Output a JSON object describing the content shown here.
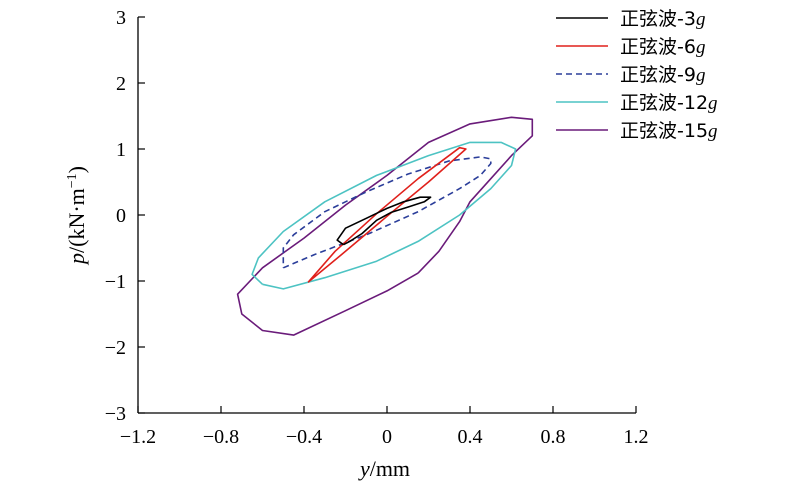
{
  "chart_data": {
    "type": "line",
    "x_axis": {
      "variable": "y",
      "unit": "/mm",
      "lim": [
        -1.2,
        1.2
      ],
      "ticks": [
        -1.2,
        -0.8,
        -0.4,
        0,
        0.4,
        0.8,
        1.2
      ],
      "tick_labels": [
        "−1.2",
        "−0.8",
        "−0.4",
        "0",
        "0.4",
        "0.8",
        "1.2"
      ]
    },
    "y_axis": {
      "variable": "p",
      "unit_prefix": "/(kN·m",
      "unit_exp": "−1",
      "unit_suffix": ")",
      "lim": [
        -3,
        3
      ],
      "ticks": [
        -3,
        -2,
        -1,
        0,
        1,
        2,
        3
      ],
      "tick_labels": [
        "−3",
        "−2",
        "−1",
        "0",
        "1",
        "2",
        "3"
      ]
    },
    "grid": false,
    "legend_position": "top-right",
    "series": [
      {
        "name_prefix": "正弦波-3",
        "name_suffix": "g",
        "color": "#000000",
        "dash": "",
        "points": [
          [
            -0.21,
            -0.45
          ],
          [
            -0.24,
            -0.38
          ],
          [
            -0.2,
            -0.2
          ],
          [
            -0.1,
            -0.05
          ],
          [
            0,
            0.1
          ],
          [
            0.08,
            0.2
          ],
          [
            0.16,
            0.27
          ],
          [
            0.21,
            0.27
          ],
          [
            0.18,
            0.2
          ],
          [
            0.1,
            0.12
          ],
          [
            0.02,
            0.04
          ],
          [
            -0.05,
            -0.08
          ],
          [
            -0.12,
            -0.28
          ],
          [
            -0.18,
            -0.4
          ],
          [
            -0.21,
            -0.45
          ]
        ]
      },
      {
        "name_prefix": "正弦波-6",
        "name_suffix": "g",
        "color": "#e0201b",
        "dash": "",
        "points": [
          [
            -0.38,
            -1.02
          ],
          [
            -0.2,
            -0.55
          ],
          [
            0,
            -0.02
          ],
          [
            0.2,
            0.5
          ],
          [
            0.38,
            1.0
          ],
          [
            0.35,
            1.02
          ],
          [
            0.15,
            0.55
          ],
          [
            -0.05,
            0.02
          ],
          [
            -0.25,
            -0.55
          ],
          [
            -0.38,
            -1.02
          ]
        ]
      },
      {
        "name_prefix": "正弦波-9",
        "name_suffix": "g",
        "color": "#2b3e9a",
        "dash": "6,4",
        "points": [
          [
            -0.5,
            -0.8
          ],
          [
            -0.35,
            -0.6
          ],
          [
            -0.1,
            -0.3
          ],
          [
            0.15,
            0.05
          ],
          [
            0.35,
            0.4
          ],
          [
            0.45,
            0.6
          ],
          [
            0.5,
            0.78
          ],
          [
            0.5,
            0.85
          ],
          [
            0.45,
            0.88
          ],
          [
            0.3,
            0.82
          ],
          [
            0.1,
            0.62
          ],
          [
            -0.1,
            0.35
          ],
          [
            -0.3,
            0.05
          ],
          [
            -0.45,
            -0.3
          ],
          [
            -0.5,
            -0.5
          ],
          [
            -0.5,
            -0.7
          ],
          [
            -0.5,
            -0.8
          ]
        ]
      },
      {
        "name_prefix": "正弦波-12",
        "name_suffix": "g",
        "color": "#4dc3c3",
        "dash": "",
        "points": [
          [
            -0.6,
            -1.05
          ],
          [
            -0.5,
            -1.12
          ],
          [
            -0.3,
            -0.95
          ],
          [
            -0.05,
            -0.7
          ],
          [
            0.15,
            -0.4
          ],
          [
            0.35,
            0.0
          ],
          [
            0.5,
            0.4
          ],
          [
            0.6,
            0.75
          ],
          [
            0.62,
            1.0
          ],
          [
            0.55,
            1.1
          ],
          [
            0.4,
            1.1
          ],
          [
            0.2,
            0.9
          ],
          [
            -0.05,
            0.6
          ],
          [
            -0.3,
            0.2
          ],
          [
            -0.5,
            -0.25
          ],
          [
            -0.62,
            -0.65
          ],
          [
            -0.65,
            -0.9
          ],
          [
            -0.6,
            -1.05
          ]
        ]
      },
      {
        "name_prefix": "正弦波-15",
        "name_suffix": "g",
        "color": "#6a1b7a",
        "dash": "",
        "points": [
          [
            0.15,
            -0.88
          ],
          [
            0.0,
            -1.15
          ],
          [
            -0.2,
            -1.45
          ],
          [
            -0.45,
            -1.82
          ],
          [
            -0.6,
            -1.75
          ],
          [
            -0.7,
            -1.5
          ],
          [
            -0.72,
            -1.2
          ],
          [
            -0.6,
            -0.8
          ],
          [
            -0.4,
            -0.35
          ],
          [
            -0.2,
            0.15
          ],
          [
            0.0,
            0.6
          ],
          [
            0.2,
            1.1
          ],
          [
            0.4,
            1.38
          ],
          [
            0.6,
            1.48
          ],
          [
            0.7,
            1.45
          ],
          [
            0.7,
            1.2
          ],
          [
            0.6,
            0.9
          ],
          [
            0.5,
            0.55
          ],
          [
            0.4,
            0.2
          ],
          [
            0.35,
            -0.1
          ],
          [
            0.25,
            -0.55
          ],
          [
            0.15,
            -0.88
          ]
        ]
      }
    ]
  }
}
